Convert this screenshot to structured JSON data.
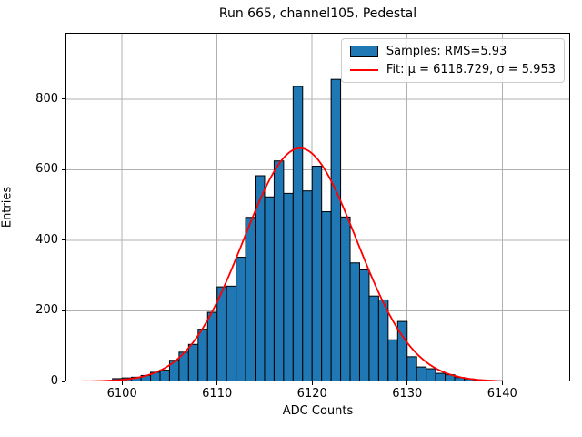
{
  "chart_data": {
    "type": "bar",
    "subtype": "histogram-with-gaussian-fit",
    "title": "Run 665, channel105, Pedestal",
    "xlabel": "ADC Counts",
    "ylabel": "Entries",
    "xlim": [
      6094.05,
      6147.15
    ],
    "ylim": [
      0,
      988
    ],
    "x_ticks": [
      6100,
      6110,
      6120,
      6130,
      6140
    ],
    "y_ticks": [
      0,
      200,
      400,
      600,
      800
    ],
    "grid": true,
    "grid_color": "#b0b0b0",
    "bar_color": "#1f77b4",
    "bar_edge_color": "#000000",
    "fit_color": "#ff0000",
    "bin_width": 1,
    "bin_left_edges": [
      6099,
      6100,
      6101,
      6102,
      6103,
      6104,
      6105,
      6106,
      6107,
      6108,
      6109,
      6110,
      6111,
      6112,
      6113,
      6114,
      6115,
      6116,
      6117,
      6118,
      6119,
      6120,
      6121,
      6122,
      6123,
      6124,
      6125,
      6126,
      6127,
      6128,
      6129,
      6130,
      6131,
      6132,
      6133,
      6134,
      6135,
      6136,
      6137,
      6138,
      6139
    ],
    "counts": [
      8,
      10,
      12,
      17,
      26,
      32,
      60,
      83,
      105,
      148,
      196,
      268,
      270,
      352,
      465,
      583,
      523,
      625,
      533,
      836,
      540,
      610,
      481,
      856,
      466,
      336,
      316,
      242,
      231,
      118,
      170,
      70,
      41,
      36,
      23,
      19,
      11,
      7,
      4,
      3,
      2
    ],
    "fit": {
      "amplitude": 661,
      "mu": 6118.729,
      "sigma": 5.953,
      "x_start": 6095.5,
      "x_end": 6139.5
    },
    "legend": {
      "position": "upper-right",
      "entries": [
        {
          "swatch": "patch",
          "label": "Samples: RMS=5.93"
        },
        {
          "swatch": "line",
          "label": "Fit: μ = 6118.729, σ = 5.953"
        }
      ]
    }
  }
}
